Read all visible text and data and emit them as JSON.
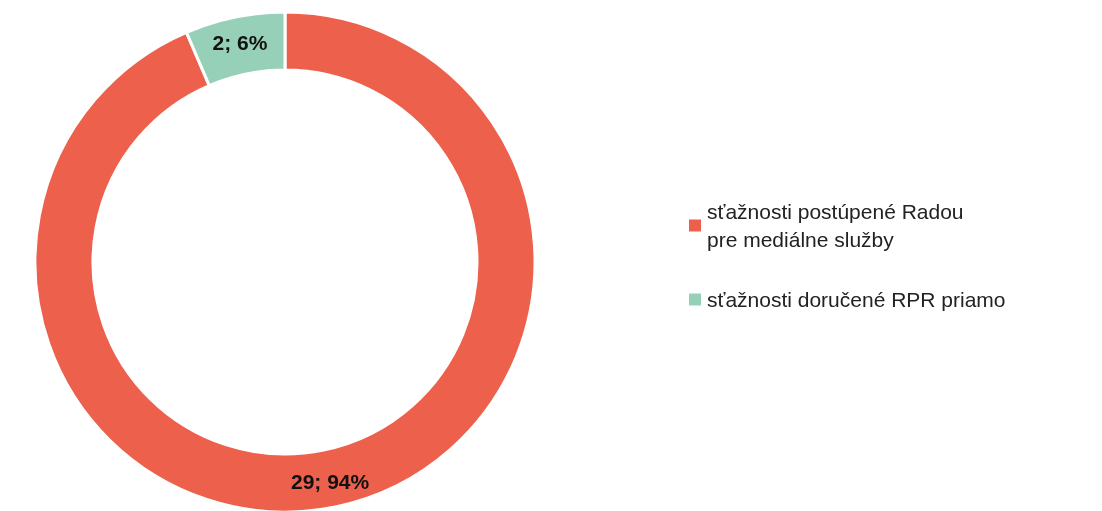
{
  "chart_data": {
    "type": "donut",
    "categories": [
      "sťažnosti postúpené Radou\npre mediálne služby",
      "sťažnosti doručené RPR priamo"
    ],
    "values": [
      29,
      2
    ],
    "colors": [
      "#ec604c",
      "#97d0b8"
    ],
    "value_labels": [
      "29; 94%",
      "2; 6%"
    ],
    "legend": "right"
  }
}
